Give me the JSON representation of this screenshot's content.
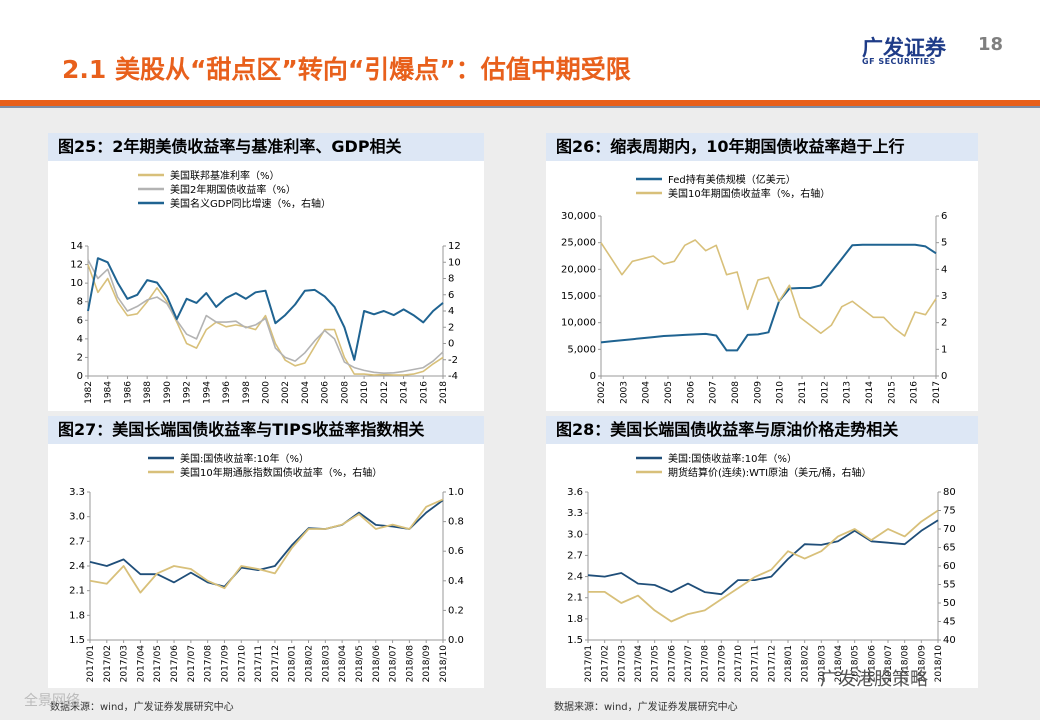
{
  "header": {
    "title": "2.1 美股从“甜点区”转向“引爆点”：估值中期受限",
    "page_number": "18",
    "logo_text": "广发证券",
    "logo_sub": "GF SECURITIES"
  },
  "colors": {
    "orange": "#e8601c",
    "navy": "#1f4e79",
    "gold": "#d8c07a",
    "gray": "#b3b3b3",
    "blue_line": "#1f6391"
  },
  "sources": {
    "left": "数据来源：wind，广发证券发展研究中心",
    "right": "数据来源：wind，广发证券发展研究中心"
  },
  "watermarks": {
    "bottom": "全景网络",
    "right": "广发港股策略"
  },
  "chart_data": [
    {
      "id": "fig25",
      "type": "line",
      "title": "图25：2年期美债收益率与基准利率、GDP相关",
      "legend": [
        "美国联邦基准利率（%）",
        "美国2年期国债收益率（%）",
        "美国名义GDP同比增速（%，右轴）"
      ],
      "x": [
        1982,
        1983,
        1984,
        1985,
        1986,
        1987,
        1988,
        1989,
        1990,
        1991,
        1992,
        1993,
        1994,
        1995,
        1996,
        1997,
        1998,
        1999,
        2000,
        2001,
        2002,
        2003,
        2004,
        2005,
        2006,
        2007,
        2008,
        2009,
        2010,
        2011,
        2012,
        2013,
        2014,
        2015,
        2016,
        2017,
        2018
      ],
      "xticks": [
        "1982",
        "1984",
        "1986",
        "1988",
        "1990",
        "1992",
        "1994",
        "1996",
        "1998",
        "2000",
        "2002",
        "2004",
        "2006",
        "2008",
        "2010",
        "2012",
        "2014",
        "2016",
        "2018"
      ],
      "ylim": [
        0,
        14
      ],
      "yticks": [
        "0",
        "2",
        "4",
        "6",
        "8",
        "10",
        "12",
        "14"
      ],
      "y2lim": [
        -4,
        12
      ],
      "y2ticks": [
        "-4",
        "-2",
        "0",
        "2",
        "4",
        "6",
        "8",
        "10",
        "12"
      ],
      "series": [
        {
          "name": "美国联邦基准利率（%）",
          "axis": "left",
          "values": [
            12.0,
            9.0,
            10.5,
            8.0,
            6.5,
            6.7,
            8.0,
            9.5,
            8.0,
            5.8,
            3.5,
            3.0,
            5.0,
            5.8,
            5.3,
            5.5,
            5.3,
            5.0,
            6.5,
            3.5,
            1.7,
            1.1,
            1.4,
            3.2,
            5.0,
            5.0,
            2.0,
            0.2,
            0.2,
            0.1,
            0.15,
            0.1,
            0.1,
            0.2,
            0.5,
            1.3,
            2.0
          ]
        },
        {
          "name": "美国2年期国债收益率（%）",
          "axis": "left",
          "values": [
            12.5,
            10.5,
            11.5,
            8.5,
            7.0,
            7.5,
            8.2,
            8.5,
            7.8,
            6.0,
            4.5,
            4.0,
            6.5,
            5.8,
            5.8,
            5.9,
            5.2,
            5.5,
            6.2,
            3.0,
            2.0,
            1.6,
            2.5,
            3.8,
            4.9,
            4.0,
            1.5,
            0.9,
            0.6,
            0.4,
            0.3,
            0.35,
            0.5,
            0.7,
            0.9,
            1.6,
            2.6
          ]
        },
        {
          "name": "美国名义GDP同比增速（%，右轴）",
          "axis": "right",
          "values": [
            4.0,
            10.5,
            10.0,
            7.5,
            5.5,
            6.0,
            7.8,
            7.5,
            5.8,
            3.0,
            5.5,
            5.0,
            6.2,
            4.5,
            5.6,
            6.2,
            5.5,
            6.3,
            6.5,
            2.5,
            3.5,
            4.8,
            6.5,
            6.6,
            5.8,
            4.5,
            2.0,
            -2.0,
            4.0,
            3.6,
            4.0,
            3.5,
            4.2,
            3.5,
            2.6,
            4.0,
            5.0
          ]
        }
      ]
    },
    {
      "id": "fig26",
      "type": "line",
      "title": "图26：缩表周期内，10年期国债收益率趋于上行",
      "legend": [
        "Fed持有美债规模（亿美元）",
        "美国10年期国债收益率（%，右轴）"
      ],
      "x": [
        2002,
        2002.5,
        2003,
        2003.5,
        2004,
        2004.5,
        2005,
        2005.5,
        2006,
        2006.5,
        2007,
        2007.5,
        2008,
        2008.5,
        2009,
        2009.5,
        2010,
        2010.5,
        2011,
        2011.5,
        2012,
        2012.5,
        2013,
        2013.5,
        2014,
        2014.5,
        2015,
        2015.5,
        2016,
        2016.5,
        2017,
        2017.5,
        2018
      ],
      "xticks": [
        "2002",
        "2003",
        "2004",
        "2005",
        "2006",
        "2007",
        "2008",
        "2009",
        "2010",
        "2011",
        "2012",
        "2013",
        "2014",
        "2015",
        "2016",
        "2017"
      ],
      "ylim": [
        0,
        30000
      ],
      "yticks": [
        "0",
        "5,000",
        "10,000",
        "15,000",
        "20,000",
        "25,000",
        "30,000"
      ],
      "y2lim": [
        0,
        6
      ],
      "y2ticks": [
        "0",
        "1",
        "2",
        "3",
        "4",
        "5",
        "6"
      ],
      "series": [
        {
          "name": "Fed持有美债规模（亿美元）",
          "axis": "left",
          "values": [
            6300,
            6500,
            6700,
            6900,
            7100,
            7300,
            7500,
            7600,
            7700,
            7800,
            7900,
            7600,
            4800,
            4800,
            7700,
            7800,
            8200,
            14000,
            16400,
            16500,
            16500,
            17000,
            19500,
            22000,
            24500,
            24600,
            24600,
            24600,
            24600,
            24600,
            24600,
            24300,
            23000
          ]
        },
        {
          "name": "美国10年期国债收益率（%，右轴）",
          "axis": "right",
          "values": [
            5.0,
            4.4,
            3.8,
            4.3,
            4.4,
            4.5,
            4.2,
            4.3,
            4.9,
            5.1,
            4.7,
            4.9,
            3.8,
            3.9,
            2.5,
            3.6,
            3.7,
            2.8,
            3.4,
            2.2,
            1.9,
            1.6,
            1.9,
            2.6,
            2.8,
            2.5,
            2.2,
            2.2,
            1.8,
            1.5,
            2.4,
            2.3,
            2.9
          ]
        }
      ]
    },
    {
      "id": "fig27",
      "type": "line",
      "title": "图27：美国长端国债收益率与TIPS收益率指数相关",
      "legend": [
        "美国:国债收益率:10年（%）",
        "美国10年期通胀指数国债收益率（%，右轴）"
      ],
      "x": [
        "2017/01",
        "2017/02",
        "2017/03",
        "2017/04",
        "2017/05",
        "2017/06",
        "2017/07",
        "2017/08",
        "2017/09",
        "2017/10",
        "2017/11",
        "2017/12",
        "2018/01",
        "2018/02",
        "2018/03",
        "2018/04",
        "2018/05",
        "2018/06",
        "2018/07",
        "2018/08",
        "2018/09",
        "2018/10"
      ],
      "xticks": [
        "2017/01",
        "2017/02",
        "2017/03",
        "2017/04",
        "2017/05",
        "2017/06",
        "2017/07",
        "2017/08",
        "2017/09",
        "2017/10",
        "2017/11",
        "2017/12",
        "2018/01",
        "2018/02",
        "2018/03",
        "2018/04",
        "2018/05",
        "2018/06",
        "2018/07",
        "2018/08",
        "2018/09",
        "2018/10"
      ],
      "ylim": [
        1.5,
        3.3
      ],
      "yticks": [
        "1.5",
        "1.8",
        "2.1",
        "2.4",
        "2.7",
        "3.0",
        "3.3"
      ],
      "y2lim": [
        0.0,
        1.0
      ],
      "y2ticks": [
        "0.0",
        "0.2",
        "0.4",
        "0.6",
        "0.8",
        "1.0"
      ],
      "series": [
        {
          "name": "美国:国债收益率:10年（%）",
          "axis": "left",
          "values": [
            2.45,
            2.4,
            2.48,
            2.3,
            2.3,
            2.2,
            2.32,
            2.2,
            2.15,
            2.38,
            2.35,
            2.4,
            2.65,
            2.86,
            2.85,
            2.9,
            3.05,
            2.9,
            2.88,
            2.85,
            3.05,
            3.2
          ]
        },
        {
          "name": "美国10年期通胀指数国债收益率（%，右轴）",
          "axis": "right",
          "values": [
            0.4,
            0.38,
            0.5,
            0.32,
            0.45,
            0.5,
            0.48,
            0.4,
            0.35,
            0.5,
            0.48,
            0.45,
            0.62,
            0.75,
            0.75,
            0.78,
            0.85,
            0.75,
            0.78,
            0.75,
            0.9,
            0.95
          ]
        }
      ]
    },
    {
      "id": "fig28",
      "type": "line",
      "title": "图28：美国长端国债收益率与原油价格走势相关",
      "legend": [
        "美国:国债收益率:10年（%）",
        "期货结算价(连续):WTI原油（美元/桶，右轴）"
      ],
      "x": [
        "2017/01",
        "2017/02",
        "2017/03",
        "2017/04",
        "2017/05",
        "2017/06",
        "2017/07",
        "2017/08",
        "2017/09",
        "2017/10",
        "2017/11",
        "2017/12",
        "2018/01",
        "2018/02",
        "2018/03",
        "2018/04",
        "2018/05",
        "2018/06",
        "2018/07",
        "2018/08",
        "2018/09",
        "2018/10"
      ],
      "xticks": [
        "2017/01",
        "2017/02",
        "2017/03",
        "2017/04",
        "2017/05",
        "2017/06",
        "2017/07",
        "2017/08",
        "2017/09",
        "2017/10",
        "2017/11",
        "2017/12",
        "2018/01",
        "2018/02",
        "2018/03",
        "2018/04",
        "2018/05",
        "2018/06",
        "2018/07",
        "2018/08",
        "2018/09",
        "2018/10"
      ],
      "ylim": [
        1.5,
        3.6
      ],
      "yticks": [
        "1.5",
        "1.8",
        "2.1",
        "2.4",
        "2.7",
        "3.0",
        "3.3",
        "3.6"
      ],
      "y2lim": [
        40,
        80
      ],
      "y2ticks": [
        "40",
        "45",
        "50",
        "55",
        "60",
        "65",
        "70",
        "75",
        "80"
      ],
      "series": [
        {
          "name": "美国:国债收益率:10年（%）",
          "axis": "left",
          "values": [
            2.42,
            2.4,
            2.45,
            2.3,
            2.28,
            2.18,
            2.3,
            2.18,
            2.15,
            2.35,
            2.35,
            2.4,
            2.65,
            2.86,
            2.85,
            2.9,
            3.05,
            2.9,
            2.88,
            2.86,
            3.05,
            3.2
          ]
        },
        {
          "name": "期货结算价(连续):WTI原油（美元/桶，右轴）",
          "axis": "right",
          "values": [
            53,
            53,
            50,
            52,
            48,
            45,
            47,
            48,
            51,
            54,
            57,
            59,
            64,
            62,
            64,
            68,
            70,
            67,
            70,
            68,
            72,
            75
          ]
        }
      ]
    }
  ]
}
